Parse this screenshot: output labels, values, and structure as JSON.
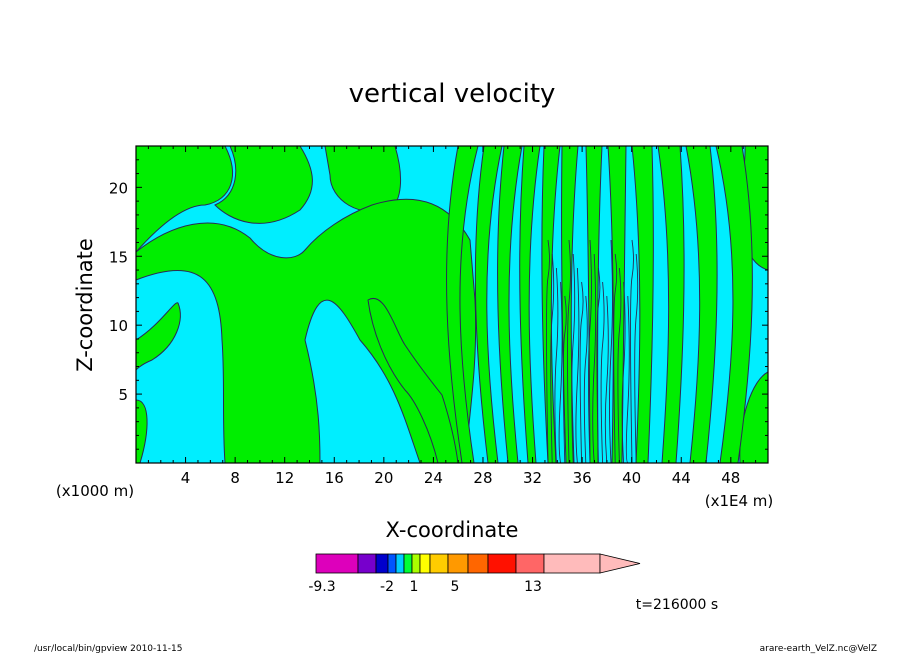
{
  "chart_data": {
    "type": "heatmap",
    "title": "vertical velocity",
    "xlabel": "X-coordinate",
    "ylabel": "Z-coordinate",
    "x_unit_label": "(x1E4 m)",
    "y_unit_label": "(x1000 m)",
    "xlim": [
      0,
      51
    ],
    "ylim": [
      0,
      23
    ],
    "x_ticks": [
      "4",
      "8",
      "12",
      "16",
      "20",
      "24",
      "28",
      "32",
      "36",
      "40",
      "44",
      "48"
    ],
    "y_ticks": [
      "5",
      "10",
      "15",
      "20"
    ],
    "colors": {
      "positive": "#00ee00",
      "negative": "#00eeff",
      "contour": "#2a2a55"
    },
    "colorbar": {
      "colors": [
        "#dd00bb",
        "#7700cc",
        "#0000cc",
        "#0055ff",
        "#00ccff",
        "#00ff33",
        "#aaff00",
        "#ffff00",
        "#ffcc00",
        "#ff9900",
        "#ff6600",
        "#ff1100",
        "#ff6666",
        "#ffbbbb"
      ],
      "labels": [
        "-9.3",
        "-2",
        "1",
        "5",
        "13"
      ]
    },
    "time_label": "t=216000 s"
  },
  "footer": {
    "left": "/usr/local/bin/gpview   2010-11-15",
    "right": "arare-earth_VelZ.nc@VelZ"
  }
}
